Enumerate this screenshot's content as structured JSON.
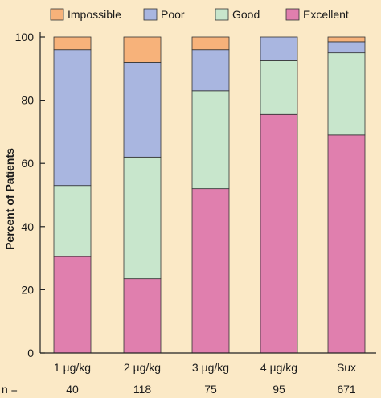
{
  "chart_data": {
    "type": "bar",
    "stacked": true,
    "categories": [
      "1 µg/kg",
      "2 µg/kg",
      "3 µg/kg",
      "4 µg/kg",
      "Sux"
    ],
    "series": [
      {
        "name": "Excellent",
        "color": "#e07fae",
        "values": [
          30.5,
          23.5,
          52,
          75.5,
          69
        ]
      },
      {
        "name": "Good",
        "color": "#c8e6cc",
        "values": [
          22.5,
          38.5,
          31,
          17,
          26
        ]
      },
      {
        "name": "Poor",
        "color": "#a9b6e0",
        "values": [
          43,
          30,
          13,
          7.5,
          3.5
        ]
      },
      {
        "name": "Impossible",
        "color": "#f7b27a",
        "values": [
          4,
          8,
          4,
          0,
          1.5
        ]
      }
    ],
    "legend_order": [
      "Impossible",
      "Poor",
      "Good",
      "Excellent"
    ],
    "legend_position": "top",
    "ylabel": "Percent of Patients",
    "xlabel": "",
    "ylim": [
      0,
      100
    ],
    "yticks": [
      0,
      20,
      40,
      60,
      80,
      100
    ],
    "n_prefix": "n =",
    "n_values": [
      "40",
      "118",
      "75",
      "95",
      "671"
    ],
    "background_color": "#fbe9c6"
  }
}
